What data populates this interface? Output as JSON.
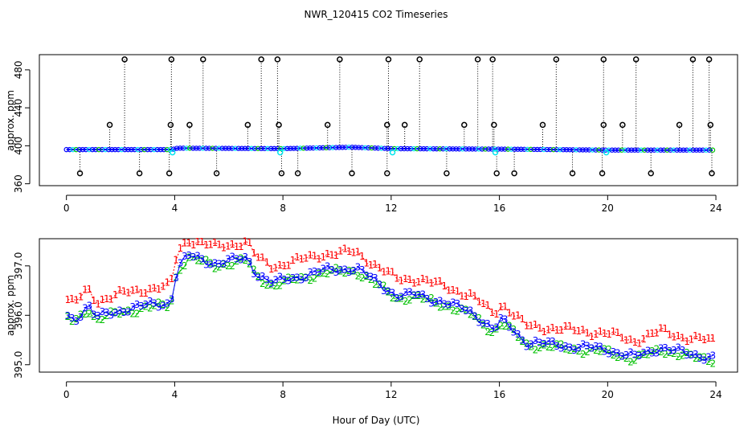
{
  "title": "NWR_120415  CO2 Timeseries",
  "colors": {
    "flag1": "#ff0000",
    "flag2": "#00c000",
    "flag3": "#0000ff",
    "cyan": "#00e5ee",
    "black": "#000000"
  },
  "chart_data": [
    {
      "type": "scatter",
      "name": "top-panel",
      "ylabel": "approx. ppm",
      "xlabel": "",
      "xlim": [
        -1,
        24.8
      ],
      "ylim": [
        358,
        496
      ],
      "xticks": [
        0,
        4,
        8,
        12,
        16,
        20,
        24
      ],
      "yticks": [
        360,
        400,
        440,
        480
      ],
      "baseline": {
        "x_start": 0.0,
        "x_end": 23.9,
        "step": 0.12,
        "points": [
          [
            0,
            396
          ],
          [
            3.9,
            396
          ],
          [
            4.1,
            397.5
          ],
          [
            8.0,
            397.0
          ],
          [
            10.5,
            398.5
          ],
          [
            12.0,
            397.0
          ],
          [
            16,
            396.5
          ],
          [
            20,
            395.5
          ],
          [
            23.9,
            395.5
          ]
        ]
      },
      "spikes_high_x": [
        2.15,
        3.88,
        5.05,
        7.2,
        7.8,
        10.1,
        11.9,
        13.05,
        15.2,
        15.75,
        18.1,
        19.85,
        21.05,
        23.15,
        23.75
      ],
      "spikes_high_value": 491,
      "spikes_mid_x": [
        1.6,
        3.85,
        4.55,
        6.7,
        7.85,
        9.65,
        11.85,
        12.5,
        14.7,
        15.8,
        17.6,
        19.85,
        20.55,
        22.65,
        23.8
      ],
      "spikes_mid_value": 422,
      "spikes_low_x": [
        0.5,
        2.7,
        3.8,
        5.55,
        7.95,
        8.55,
        10.55,
        11.85,
        14.05,
        15.9,
        16.55,
        18.7,
        19.8,
        21.6,
        23.85
      ],
      "spikes_low_value": 371,
      "cyan_x": [
        3.92,
        7.9,
        12.05,
        15.85,
        19.95
      ],
      "cyan_value": 393
    },
    {
      "type": "scatter",
      "name": "bottom-panel",
      "ylabel": "approx. ppm",
      "xlabel": "Hour of Day (UTC)",
      "xlim": [
        -1,
        24.8
      ],
      "ylim": [
        394.85,
        397.55
      ],
      "xticks": [
        0,
        4,
        8,
        12,
        16,
        20,
        24
      ],
      "yticks": [
        395.0,
        396.0,
        397.0
      ],
      "ytick_labels": [
        "395.0",
        "396.0",
        "397.0"
      ],
      "series": [
        {
          "name": "1",
          "color": "#ff0000",
          "offset": 0.33
        },
        {
          "name": "2",
          "color": "#00c000",
          "offset": -0.05
        },
        {
          "name": "3",
          "color": "#0000ff",
          "offset": 0.0
        }
      ],
      "trend": [
        [
          0,
          396.0
        ],
        [
          0.3,
          395.9
        ],
        [
          0.8,
          396.2
        ],
        [
          1.1,
          395.95
        ],
        [
          2.0,
          396.1
        ],
        [
          3.0,
          396.2
        ],
        [
          3.85,
          396.25
        ],
        [
          4.1,
          396.95
        ],
        [
          4.5,
          397.2
        ],
        [
          5.5,
          397.05
        ],
        [
          6.7,
          397.15
        ],
        [
          7.0,
          396.85
        ],
        [
          7.6,
          396.65
        ],
        [
          8.0,
          396.7
        ],
        [
          9.5,
          396.9
        ],
        [
          10.7,
          396.95
        ],
        [
          11.5,
          396.65
        ],
        [
          12.2,
          396.4
        ],
        [
          13.0,
          396.4
        ],
        [
          14.0,
          396.25
        ],
        [
          15.0,
          396.05
        ],
        [
          15.8,
          395.7
        ],
        [
          16.1,
          395.9
        ],
        [
          17.0,
          395.45
        ],
        [
          18.0,
          395.4
        ],
        [
          19.0,
          395.35
        ],
        [
          20.0,
          395.3
        ],
        [
          21.0,
          395.15
        ],
        [
          22.0,
          395.35
        ],
        [
          23.0,
          395.2
        ],
        [
          23.9,
          395.15
        ]
      ]
    }
  ]
}
